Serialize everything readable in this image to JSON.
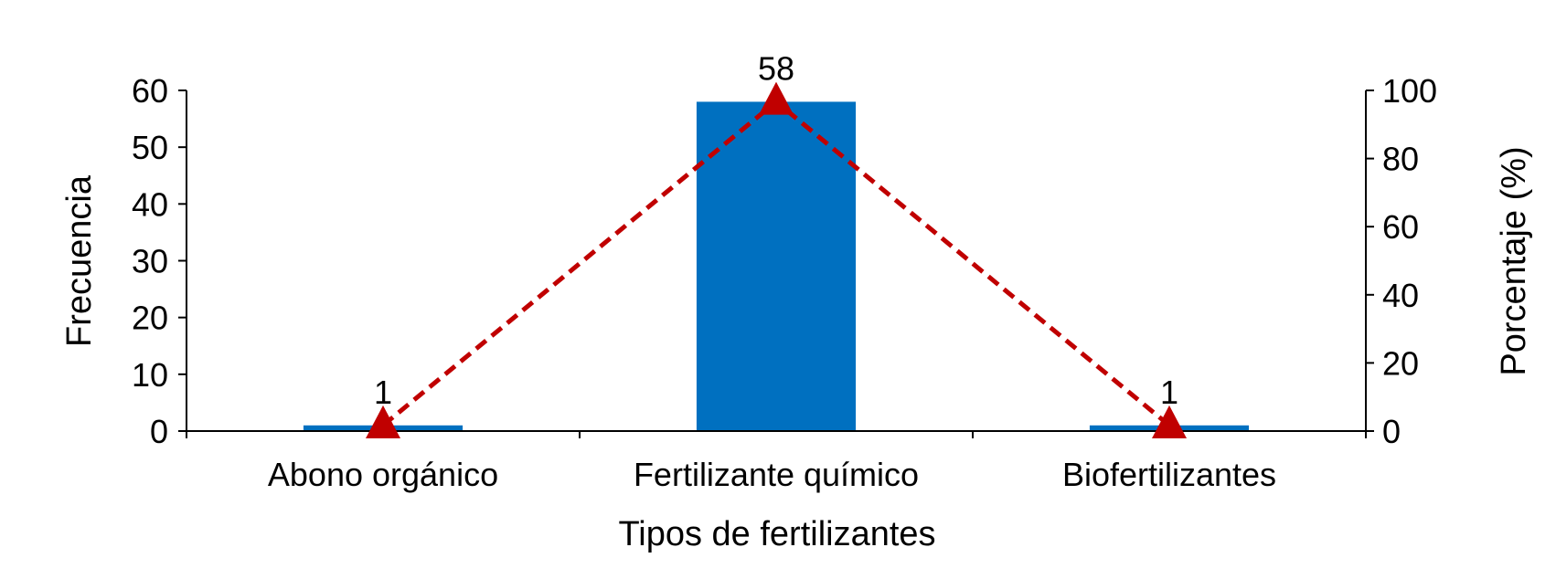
{
  "chart_data": {
    "type": "bar",
    "categories": [
      "Abono orgánico",
      "Fertilizante químico",
      "Biofertilizantes"
    ],
    "xlabel": "Tipos de fertilizantes",
    "ylabel": "Frecuencia",
    "y2label": "Porcentaje (%)",
    "ylim": [
      0,
      60
    ],
    "y2lim": [
      0,
      100
    ],
    "yticks": [
      "0",
      "10",
      "20",
      "30",
      "40",
      "50",
      "60"
    ],
    "y2ticks": [
      "0",
      "20",
      "40",
      "60",
      "80",
      "100"
    ],
    "series": [
      {
        "type": "bar",
        "axis": "left",
        "values": [
          1,
          58,
          1
        ],
        "labels": [
          "1",
          "58",
          "1"
        ]
      },
      {
        "type": "line",
        "axis": "right",
        "values": [
          1.67,
          96.67,
          1.67
        ]
      }
    ],
    "grid": false,
    "legend": "none",
    "colors": {
      "bar": "#0070C0",
      "line": "#C00000"
    }
  }
}
